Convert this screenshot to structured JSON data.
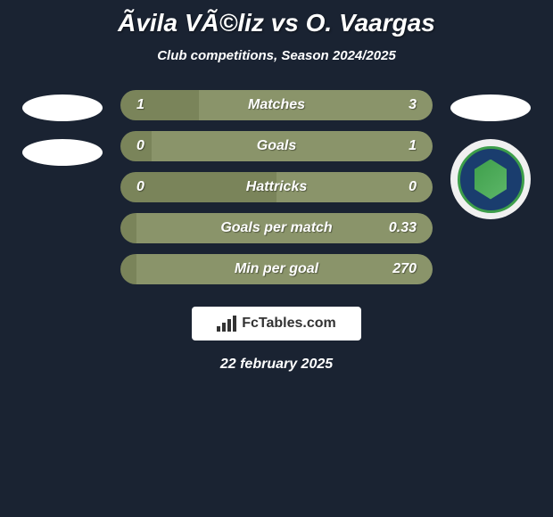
{
  "title": "Ãvila VÃ©liz vs O. Vaargas",
  "subtitle": "Club competitions, Season 2024/2025",
  "date": "22 february 2025",
  "footer_brand": "FcTables.com",
  "colors": {
    "background": "#1a2332",
    "bar_left": "#7a845a",
    "bar_right": "#8a946a",
    "text": "#ffffff",
    "logo_bg": "#ffffff",
    "logo_text": "#333333"
  },
  "stats": [
    {
      "label": "Matches",
      "left_value": "1",
      "right_value": "3",
      "left_width": 25,
      "right_width": 75
    },
    {
      "label": "Goals",
      "left_value": "0",
      "right_value": "1",
      "left_width": 10,
      "right_width": 90
    },
    {
      "label": "Hattricks",
      "left_value": "0",
      "right_value": "0",
      "left_width": 50,
      "right_width": 50
    },
    {
      "label": "Goals per match",
      "left_value": "",
      "right_value": "0.33",
      "left_width": 5,
      "right_width": 95
    },
    {
      "label": "Min per goal",
      "left_value": "",
      "right_value": "270",
      "left_width": 5,
      "right_width": 95
    }
  ]
}
